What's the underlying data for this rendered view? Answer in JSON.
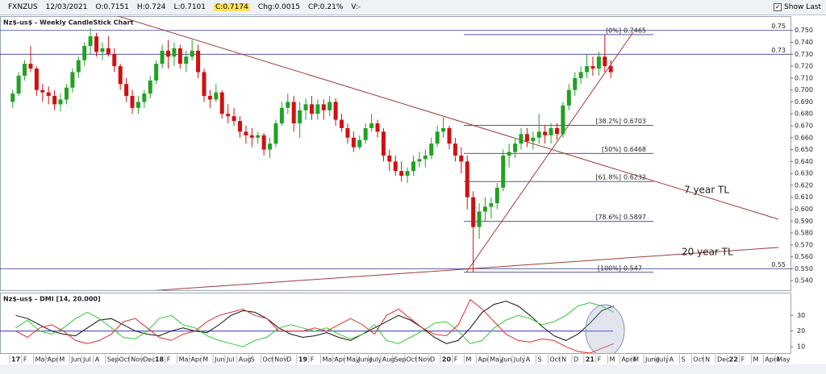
{
  "toolbar": {
    "symbol": "FXNZUS",
    "date": "12/03/2021",
    "open": "O:0.7151",
    "high": "H:0.724",
    "low": "L:0.7101",
    "close": "C:0.7174",
    "change": "Chg:0.0015",
    "change_pct": "CP:0.21%",
    "volume": "V:-",
    "show_last": "Show Last"
  },
  "chart_data": {
    "type": "candlestick",
    "title": "Nz$-us$ - Weekly CandleStick Chart",
    "up_color": "#22a122",
    "down_color": "#d01010",
    "candles": [
      [
        0.69,
        0.7,
        0.685,
        0.697
      ],
      [
        0.697,
        0.715,
        0.695,
        0.712
      ],
      [
        0.712,
        0.725,
        0.708,
        0.722
      ],
      [
        0.722,
        0.737,
        0.715,
        0.718
      ],
      [
        0.718,
        0.72,
        0.695,
        0.7
      ],
      [
        0.7,
        0.705,
        0.69,
        0.698
      ],
      [
        0.698,
        0.703,
        0.688,
        0.695
      ],
      [
        0.695,
        0.7,
        0.683,
        0.688
      ],
      [
        0.688,
        0.697,
        0.682,
        0.692
      ],
      [
        0.692,
        0.705,
        0.688,
        0.702
      ],
      [
        0.702,
        0.718,
        0.698,
        0.715
      ],
      [
        0.715,
        0.728,
        0.71,
        0.725
      ],
      [
        0.725,
        0.74,
        0.72,
        0.737
      ],
      [
        0.737,
        0.752,
        0.73,
        0.745
      ],
      [
        0.745,
        0.748,
        0.728,
        0.732
      ],
      [
        0.732,
        0.74,
        0.725,
        0.735
      ],
      [
        0.735,
        0.745,
        0.728,
        0.73
      ],
      [
        0.73,
        0.735,
        0.715,
        0.72
      ],
      [
        0.72,
        0.722,
        0.7,
        0.705
      ],
      [
        0.705,
        0.71,
        0.69,
        0.695
      ],
      [
        0.695,
        0.7,
        0.68,
        0.685
      ],
      [
        0.685,
        0.695,
        0.68,
        0.69
      ],
      [
        0.69,
        0.7,
        0.685,
        0.697
      ],
      [
        0.697,
        0.712,
        0.693,
        0.708
      ],
      [
        0.708,
        0.725,
        0.705,
        0.722
      ],
      [
        0.722,
        0.738,
        0.718,
        0.733
      ],
      [
        0.733,
        0.742,
        0.718,
        0.728
      ],
      [
        0.728,
        0.74,
        0.72,
        0.735
      ],
      [
        0.735,
        0.738,
        0.718,
        0.722
      ],
      [
        0.722,
        0.733,
        0.715,
        0.728
      ],
      [
        0.728,
        0.742,
        0.725,
        0.733
      ],
      [
        0.733,
        0.738,
        0.71,
        0.715
      ],
      [
        0.715,
        0.718,
        0.69,
        0.695
      ],
      [
        0.695,
        0.7,
        0.685,
        0.692
      ],
      [
        0.692,
        0.705,
        0.69,
        0.698
      ],
      [
        0.698,
        0.7,
        0.676,
        0.68
      ],
      [
        0.68,
        0.688,
        0.672,
        0.678
      ],
      [
        0.678,
        0.685,
        0.67,
        0.674
      ],
      [
        0.674,
        0.678,
        0.66,
        0.665
      ],
      [
        0.665,
        0.67,
        0.655,
        0.662
      ],
      [
        0.662,
        0.668,
        0.652,
        0.66
      ],
      [
        0.66,
        0.665,
        0.655,
        0.662
      ],
      [
        0.662,
        0.664,
        0.645,
        0.65
      ],
      [
        0.65,
        0.66,
        0.643,
        0.655
      ],
      [
        0.655,
        0.675,
        0.652,
        0.672
      ],
      [
        0.672,
        0.69,
        0.67,
        0.685
      ],
      [
        0.685,
        0.697,
        0.68,
        0.69
      ],
      [
        0.69,
        0.695,
        0.665,
        0.672
      ],
      [
        0.672,
        0.69,
        0.66,
        0.683
      ],
      [
        0.683,
        0.693,
        0.675,
        0.688
      ],
      [
        0.688,
        0.695,
        0.675,
        0.68
      ],
      [
        0.68,
        0.692,
        0.675,
        0.688
      ],
      [
        0.688,
        0.692,
        0.675,
        0.683
      ],
      [
        0.683,
        0.695,
        0.678,
        0.69
      ],
      [
        0.69,
        0.693,
        0.67,
        0.675
      ],
      [
        0.675,
        0.68,
        0.665,
        0.668
      ],
      [
        0.668,
        0.672,
        0.655,
        0.66
      ],
      [
        0.66,
        0.665,
        0.648,
        0.652
      ],
      [
        0.652,
        0.662,
        0.65,
        0.658
      ],
      [
        0.658,
        0.672,
        0.655,
        0.668
      ],
      [
        0.668,
        0.68,
        0.665,
        0.672
      ],
      [
        0.672,
        0.675,
        0.66,
        0.665
      ],
      [
        0.665,
        0.668,
        0.64,
        0.645
      ],
      [
        0.645,
        0.65,
        0.632,
        0.64
      ],
      [
        0.64,
        0.645,
        0.628,
        0.632
      ],
      [
        0.632,
        0.64,
        0.623,
        0.628
      ],
      [
        0.628,
        0.635,
        0.622,
        0.632
      ],
      [
        0.632,
        0.645,
        0.628,
        0.64
      ],
      [
        0.64,
        0.648,
        0.635,
        0.642
      ],
      [
        0.642,
        0.65,
        0.635,
        0.645
      ],
      [
        0.645,
        0.66,
        0.642,
        0.655
      ],
      [
        0.655,
        0.67,
        0.652,
        0.665
      ],
      [
        0.665,
        0.677,
        0.66,
        0.668
      ],
      [
        0.668,
        0.67,
        0.65,
        0.655
      ],
      [
        0.655,
        0.66,
        0.64,
        0.645
      ],
      [
        0.645,
        0.652,
        0.63,
        0.64
      ],
      [
        0.64,
        0.645,
        0.6,
        0.61
      ],
      [
        0.61,
        0.615,
        0.547,
        0.585
      ],
      [
        0.585,
        0.605,
        0.575,
        0.598
      ],
      [
        0.598,
        0.61,
        0.59,
        0.602
      ],
      [
        0.602,
        0.61,
        0.592,
        0.605
      ],
      [
        0.605,
        0.622,
        0.6,
        0.618
      ],
      [
        0.618,
        0.65,
        0.615,
        0.645
      ],
      [
        0.645,
        0.655,
        0.635,
        0.648
      ],
      [
        0.648,
        0.66,
        0.643,
        0.655
      ],
      [
        0.655,
        0.668,
        0.65,
        0.663
      ],
      [
        0.663,
        0.668,
        0.652,
        0.657
      ],
      [
        0.657,
        0.665,
        0.65,
        0.66
      ],
      [
        0.66,
        0.68,
        0.655,
        0.665
      ],
      [
        0.665,
        0.67,
        0.655,
        0.662
      ],
      [
        0.662,
        0.672,
        0.655,
        0.668
      ],
      [
        0.668,
        0.672,
        0.658,
        0.663
      ],
      [
        0.663,
        0.69,
        0.66,
        0.687
      ],
      [
        0.687,
        0.705,
        0.683,
        0.7
      ],
      [
        0.7,
        0.715,
        0.695,
        0.71
      ],
      [
        0.71,
        0.72,
        0.705,
        0.715
      ],
      [
        0.715,
        0.73,
        0.71,
        0.72
      ],
      [
        0.72,
        0.728,
        0.712,
        0.718
      ],
      [
        0.718,
        0.732,
        0.712,
        0.728
      ],
      [
        0.728,
        0.7465,
        0.715,
        0.72
      ],
      [
        0.72,
        0.725,
        0.71,
        0.715
      ]
    ],
    "categories": [
      "17",
      "F",
      "Mar",
      "Apr",
      "M",
      "Jun",
      "Jul",
      "A",
      "Sep",
      "Oct",
      "Nov",
      "Dec",
      "18",
      "F",
      "Mar",
      "Apr",
      "M",
      "Jun",
      "Jul",
      "Aug",
      "S",
      "Oct",
      "Nov",
      "D",
      "19",
      "F",
      "Mar",
      "Apr",
      "May",
      "June",
      "July",
      "Aug",
      "Sep",
      "Oct",
      "Nov",
      "D",
      "20",
      "F",
      "M",
      "Apr",
      "May",
      "Jun",
      "July",
      "A",
      "S",
      "Oct",
      "N",
      "D",
      "21",
      "F",
      "M",
      "April",
      "M",
      "June",
      "July",
      "A",
      "S",
      "Oct",
      "N",
      "Dec",
      "22",
      "F",
      "M",
      "April",
      "May"
    ],
    "ylim": [
      0.532,
      0.762
    ],
    "yticks": [
      {
        "value": 0.54,
        "label": "0.540"
      },
      {
        "value": 0.55,
        "label": "0.550"
      },
      {
        "value": 0.56,
        "label": "0.560"
      },
      {
        "value": 0.57,
        "label": "0.570"
      },
      {
        "value": 0.58,
        "label": "0.580"
      },
      {
        "value": 0.59,
        "label": "0.590"
      },
      {
        "value": 0.6,
        "label": "0.600"
      },
      {
        "value": 0.61,
        "label": "0.610"
      },
      {
        "value": 0.62,
        "label": "0.620"
      },
      {
        "value": 0.63,
        "label": "0.630"
      },
      {
        "value": 0.64,
        "label": "0.640"
      },
      {
        "value": 0.65,
        "label": "0.650"
      },
      {
        "value": 0.66,
        "label": "0.660"
      },
      {
        "value": 0.67,
        "label": "0.670"
      },
      {
        "value": 0.68,
        "label": "0.680"
      },
      {
        "value": 0.69,
        "label": "0.690"
      },
      {
        "value": 0.7,
        "label": "0.700"
      },
      {
        "value": 0.71,
        "label": "0.710"
      },
      {
        "value": 0.72,
        "label": "0.720"
      },
      {
        "value": 0.73,
        "label": "0.730"
      },
      {
        "value": 0.74,
        "label": "0.740"
      },
      {
        "value": 0.75,
        "label": "0.750"
      }
    ],
    "levels": [
      0.75,
      0.73,
      0.55
    ],
    "fib": [
      {
        "label": "[0%]",
        "value": 0.7465
      },
      {
        "label": "[38.2%]",
        "value": 0.6703
      },
      {
        "label": "[50%]",
        "value": 0.6468
      },
      {
        "label": "[61.8%]",
        "value": 0.6232
      },
      {
        "label": "[78.6%]",
        "value": 0.5897
      },
      {
        "label": "[100%]",
        "value": 0.547
      }
    ],
    "annotations": [
      "7 year TL",
      "20 year TL"
    ],
    "indicator": {
      "title": "Nz$-us$ - DMI [14, 20.000]",
      "ylim": [
        6,
        44
      ],
      "yticks": [
        10,
        20,
        30
      ],
      "level": 20,
      "level_color": "#3030c0",
      "series": [
        {
          "color": "#111111",
          "values": [
            30,
            28,
            24,
            20,
            18,
            17,
            22,
            27,
            28,
            24,
            20,
            18,
            17,
            20,
            22,
            20,
            19,
            24,
            30,
            33,
            32,
            28,
            22,
            18,
            16,
            17,
            19,
            16,
            14,
            18,
            22,
            26,
            30,
            27,
            22,
            16,
            12,
            14,
            22,
            32,
            37,
            39,
            36,
            30,
            23,
            17,
            14,
            18,
            25,
            33,
            36
          ]
        },
        {
          "color": "#33cc33",
          "values": [
            22,
            27,
            20,
            18,
            22,
            28,
            32,
            28,
            22,
            16,
            15,
            20,
            28,
            30,
            24,
            22,
            17,
            14,
            12,
            10,
            14,
            16,
            22,
            24,
            22,
            20,
            22,
            18,
            15,
            18,
            24,
            14,
            12,
            16,
            20,
            25,
            26,
            20,
            12,
            14,
            22,
            27,
            30,
            28,
            24,
            26,
            30,
            36,
            38,
            36,
            32
          ]
        },
        {
          "color": "#e03030",
          "values": [
            20,
            16,
            22,
            24,
            20,
            14,
            12,
            14,
            18,
            26,
            28,
            22,
            16,
            14,
            18,
            20,
            26,
            30,
            32,
            34,
            30,
            28,
            20,
            20,
            20,
            22,
            20,
            24,
            28,
            24,
            18,
            30,
            34,
            28,
            22,
            18,
            17,
            24,
            40,
            34,
            26,
            18,
            14,
            13,
            15,
            14,
            10,
            7,
            6,
            9,
            12
          ]
        }
      ]
    }
  }
}
